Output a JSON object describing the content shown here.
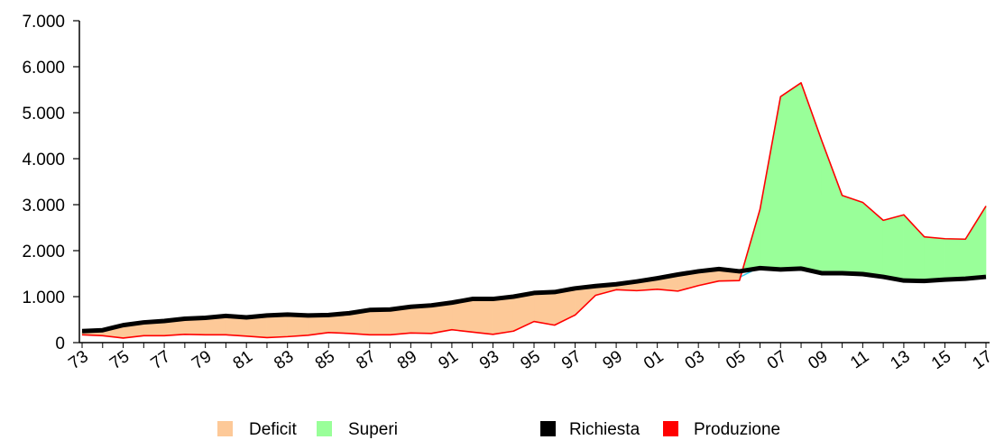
{
  "chart_data": {
    "type": "area",
    "title": "",
    "xlabel": "",
    "ylabel": "",
    "ylim": [
      0,
      7000
    ],
    "yticks": [
      0,
      1000,
      2000,
      3000,
      4000,
      5000,
      6000,
      7000
    ],
    "ytick_labels": [
      "0",
      "1.000",
      "2.000",
      "3.000",
      "4.000",
      "5.000",
      "6.000",
      "7.000"
    ],
    "xticks": [
      "73",
      "75",
      "77",
      "79",
      "81",
      "83",
      "85",
      "87",
      "89",
      "91",
      "93",
      "95",
      "97",
      "99",
      "01",
      "03",
      "05",
      "07",
      "09",
      "11",
      "13",
      "15",
      "17"
    ],
    "grid": false,
    "legend_position": "bottom",
    "x": [
      "1973",
      "1974",
      "1975",
      "1976",
      "1977",
      "1978",
      "1979",
      "1980",
      "1981",
      "1982",
      "1983",
      "1984",
      "1985",
      "1986",
      "1987",
      "1988",
      "1989",
      "1990",
      "1991",
      "1992",
      "1993",
      "1994",
      "1995",
      "1996",
      "1997",
      "1998",
      "1999",
      "2000",
      "2001",
      "2002",
      "2003",
      "2004",
      "2005",
      "2006",
      "2007",
      "2008",
      "2009",
      "2010",
      "2011",
      "2012",
      "2013",
      "2014",
      "2015",
      "2016",
      "2017"
    ],
    "series": [
      {
        "name": "Richiesta",
        "color": "#000000",
        "values": [
          250,
          270,
          380,
          440,
          470,
          520,
          540,
          580,
          550,
          590,
          610,
          590,
          600,
          640,
          710,
          720,
          780,
          810,
          870,
          950,
          950,
          1000,
          1080,
          1100,
          1180,
          1230,
          1270,
          1330,
          1400,
          1480,
          1550,
          1600,
          1550,
          1620,
          1590,
          1610,
          1510,
          1510,
          1490,
          1430,
          1350,
          1340,
          1370,
          1390,
          1430
        ]
      },
      {
        "name": "Produzione",
        "color": "#ff0000",
        "values": [
          170,
          150,
          100,
          150,
          150,
          180,
          170,
          170,
          140,
          110,
          130,
          160,
          220,
          200,
          170,
          170,
          210,
          200,
          280,
          230,
          180,
          250,
          460,
          380,
          600,
          1030,
          1150,
          1130,
          1160,
          1120,
          1240,
          1340,
          1350,
          2900,
          5350,
          5650,
          4400,
          3200,
          3050,
          2660,
          2780,
          2300,
          2260,
          2250,
          2970
        ]
      }
    ],
    "fills": [
      {
        "name": "Deficit",
        "color": "#fdc998"
      },
      {
        "name": "Superi",
        "color": "#99ff99"
      }
    ],
    "legend": [
      {
        "label": "Deficit",
        "color": "#fdc998"
      },
      {
        "label": "Superi",
        "color": "#99ff99"
      },
      {
        "label": "Richiesta",
        "color": "#000000"
      },
      {
        "label": "Produzione",
        "color": "#ff0000"
      }
    ]
  }
}
